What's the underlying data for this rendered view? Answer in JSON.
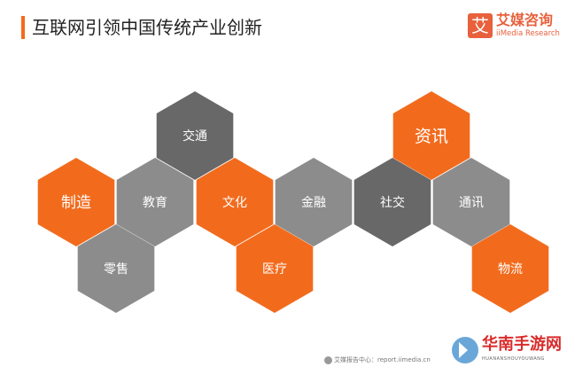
{
  "title": "互联网引领中国传统产业创新",
  "logo": {
    "mark": "艾",
    "name": "艾媒咨询",
    "en": "iiMedia Research"
  },
  "colors": {
    "orange": "#f26b1d",
    "dark_gray": "#666666",
    "light_gray": "#8c8c8c",
    "accent": "#f26b1d"
  },
  "hexagons": [
    {
      "label": "交通",
      "color": "#686868"
    },
    {
      "label": "制造",
      "color": "#f26b1d"
    },
    {
      "label": "教育",
      "color": "#8c8c8c"
    },
    {
      "label": "文化",
      "color": "#f26b1d"
    },
    {
      "label": "金融",
      "color": "#8c8c8c"
    },
    {
      "label": "社交",
      "color": "#686868"
    },
    {
      "label": "通讯",
      "color": "#8c8c8c"
    },
    {
      "label": "零售",
      "color": "#8c8c8c"
    },
    {
      "label": "医疗",
      "color": "#f26b1d"
    },
    {
      "label": "资讯",
      "color": "#f26b1d"
    },
    {
      "label": "物流",
      "color": "#f26b1d"
    }
  ],
  "footer": {
    "text": "艾媒报告中心：report.iimedia.cn"
  },
  "watermark": {
    "text": "华南手游网",
    "sub": "HUANANSHOUYOUWANG"
  }
}
